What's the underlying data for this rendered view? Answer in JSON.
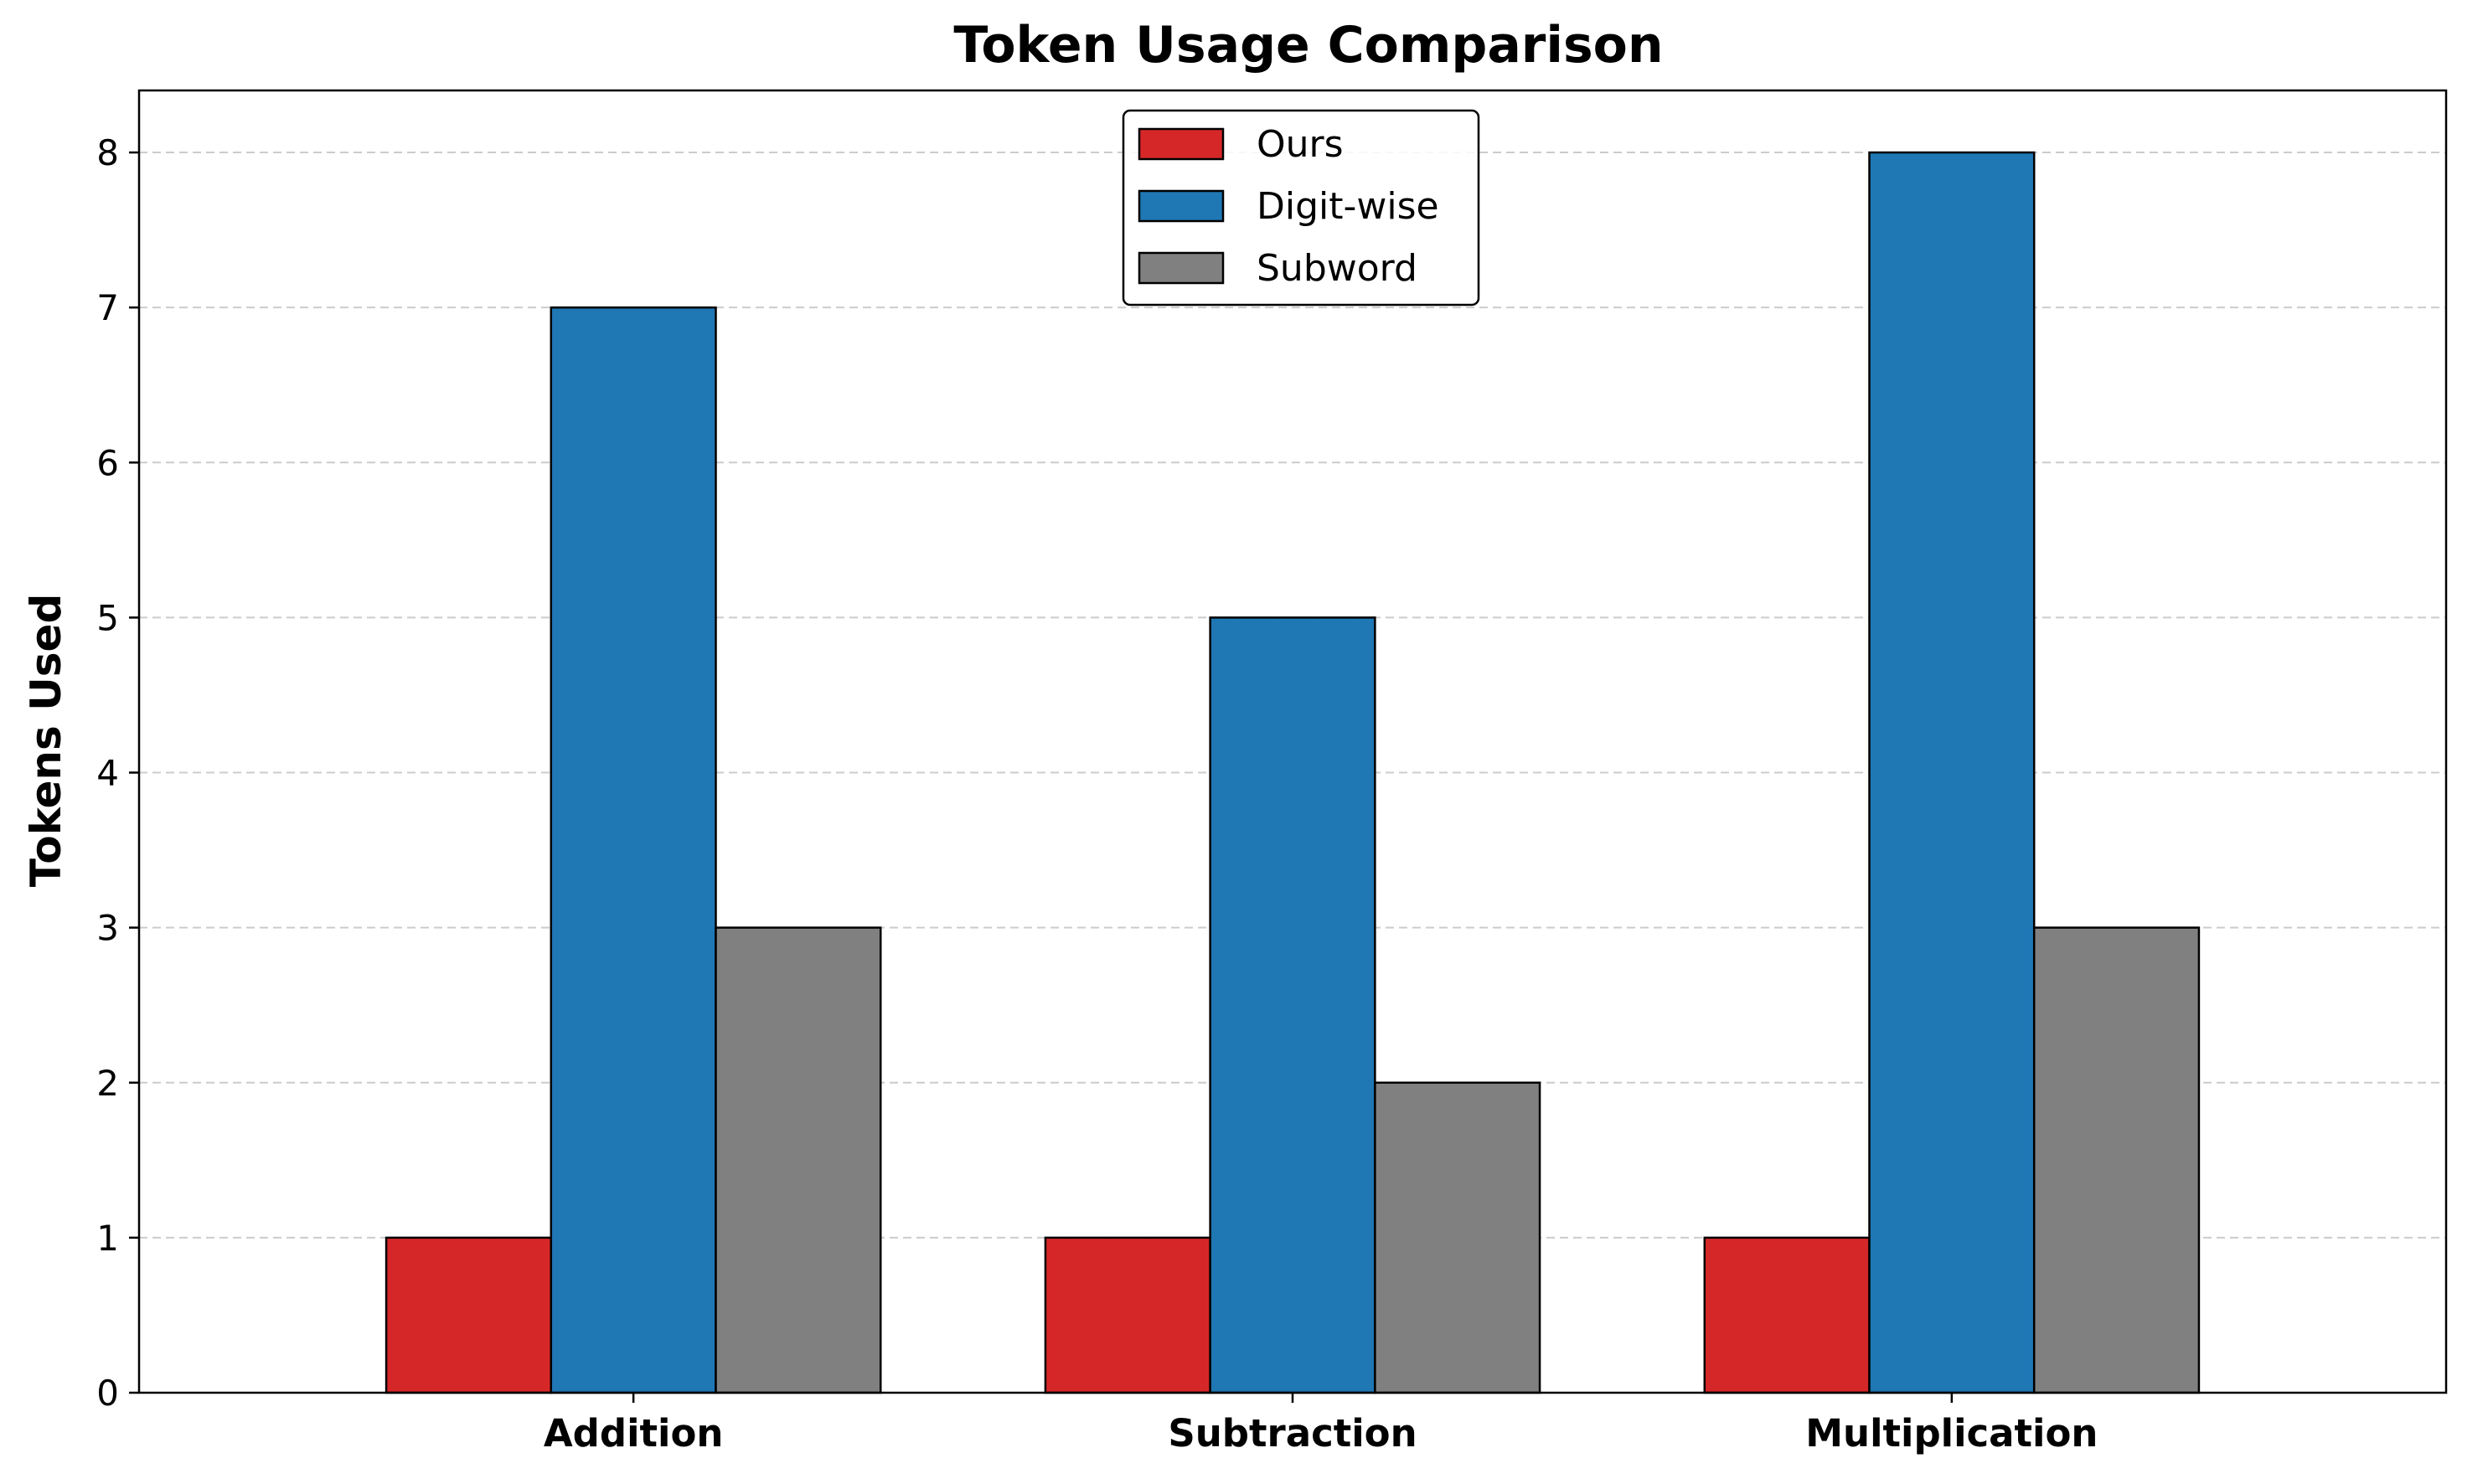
{
  "chart_data": {
    "type": "bar",
    "title": "Token Usage Comparison",
    "xlabel": "",
    "ylabel": "Tokens Used",
    "categories": [
      "Addition",
      "Subtraction",
      "Multiplication"
    ],
    "series": [
      {
        "name": "Ours",
        "color": "#d62728",
        "values": [
          1,
          1,
          1
        ]
      },
      {
        "name": "Digit-wise",
        "color": "#1f77b4",
        "values": [
          7,
          5,
          8
        ]
      },
      {
        "name": "Subword",
        "color": "#808080",
        "values": [
          3,
          2,
          3
        ]
      }
    ],
    "ylim": [
      0,
      8.4
    ],
    "yticks": [
      "0",
      "1",
      "2",
      "3",
      "4",
      "5",
      "6",
      "7",
      "8"
    ],
    "grid": "horizontal, dashed",
    "legend_position": "top-center"
  }
}
